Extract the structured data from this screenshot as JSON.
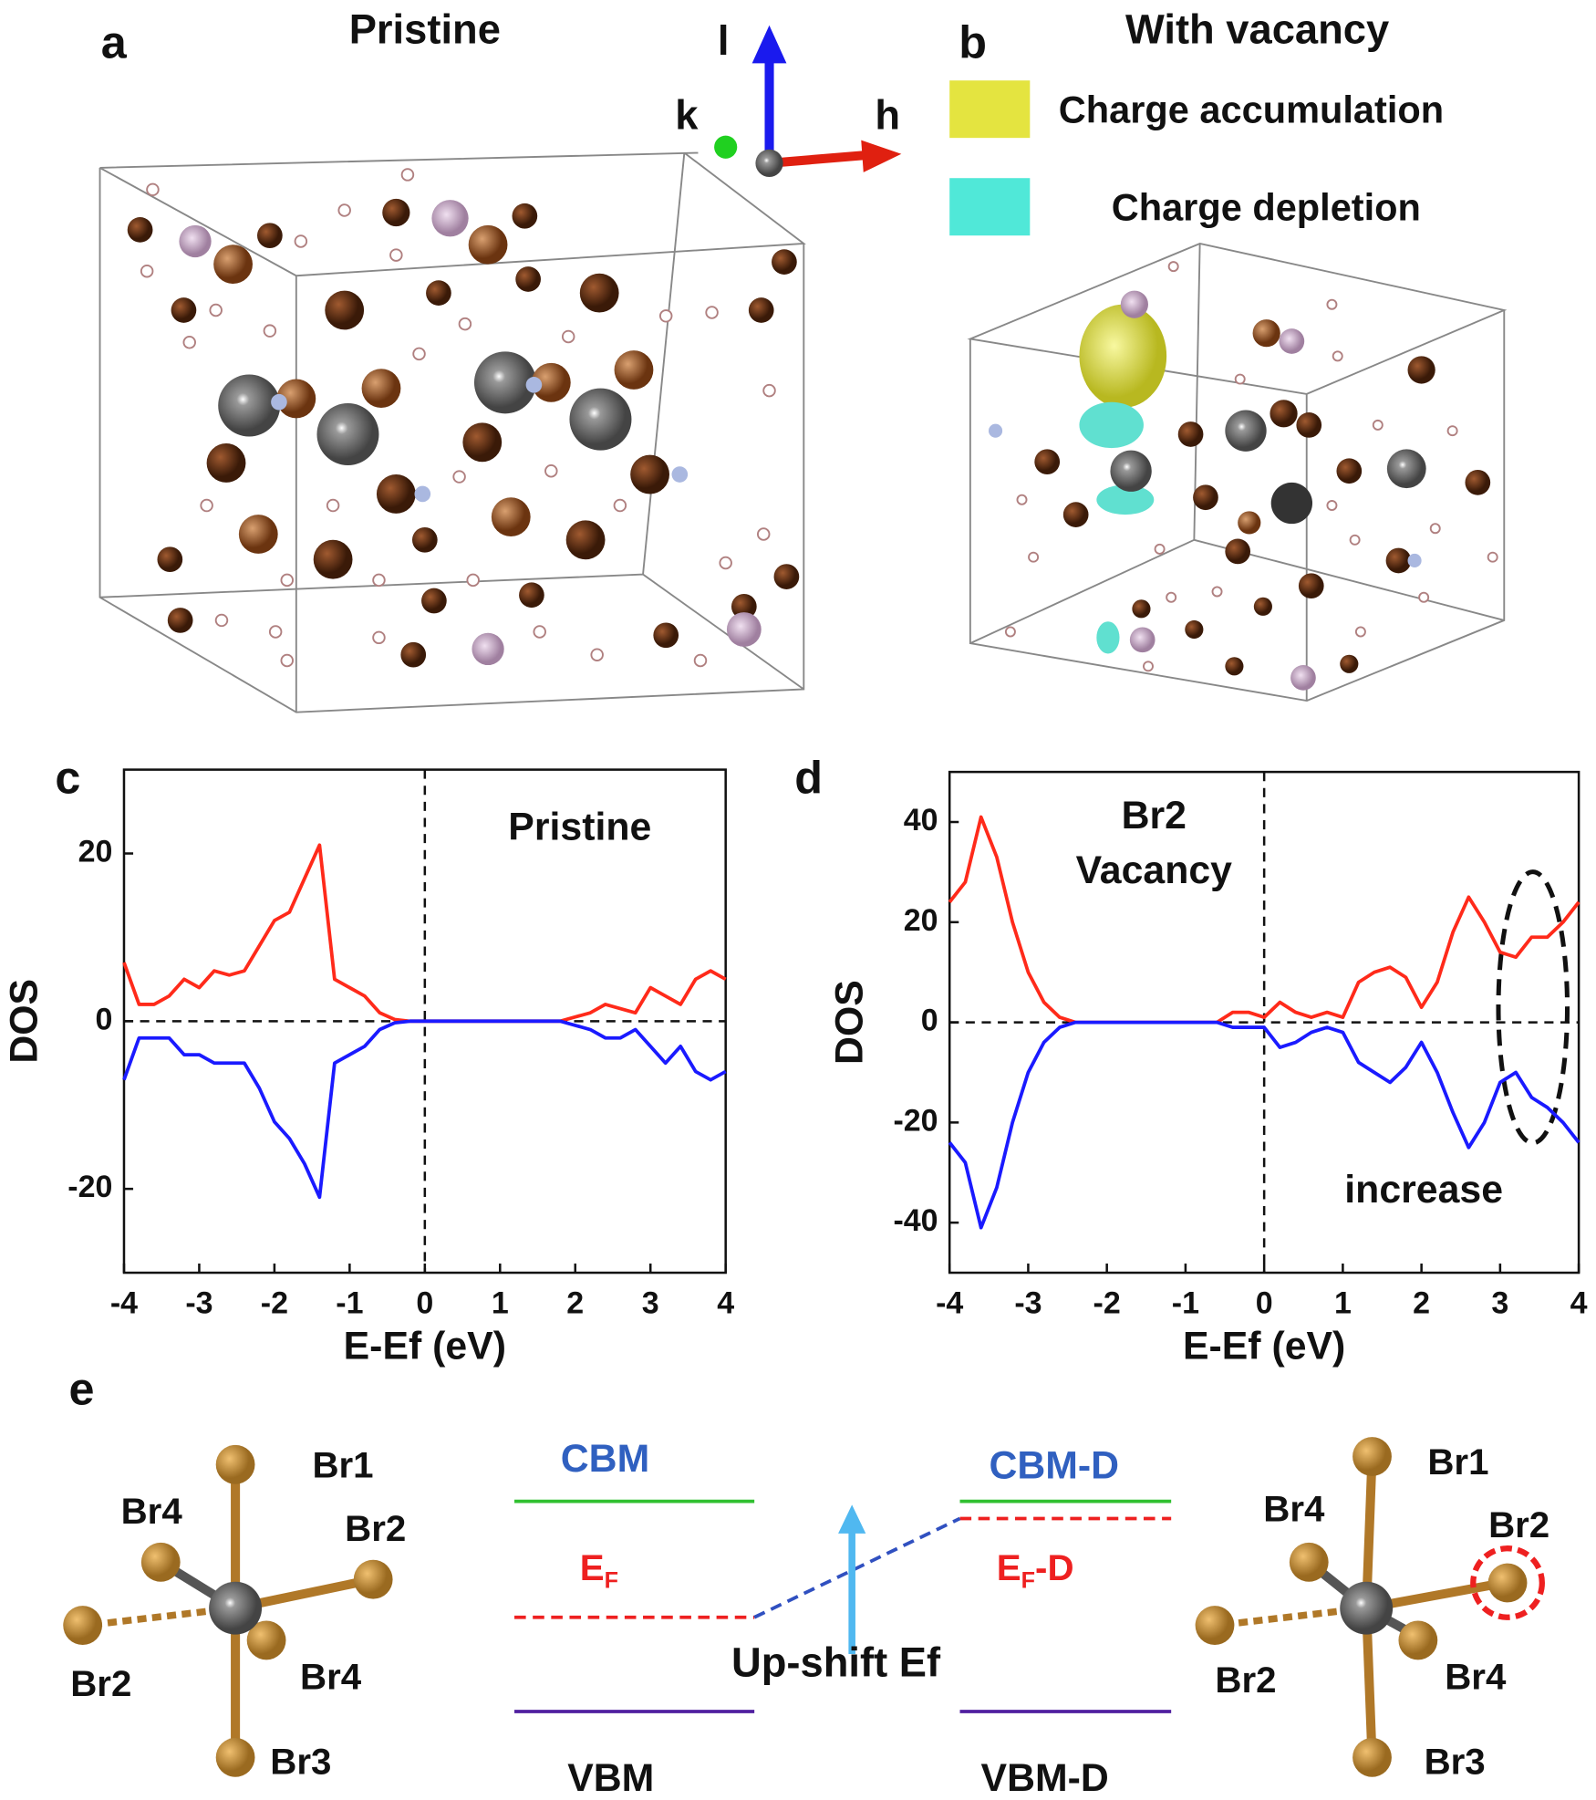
{
  "panels": {
    "a": {
      "label": "a",
      "title": "Pristine",
      "axis_labels": [
        "l",
        "k",
        "h"
      ]
    },
    "b": {
      "label": "b",
      "title": "With vacancy",
      "legend": [
        "Charge accumulation",
        "Charge depletion"
      ]
    }
  },
  "chart_data": [
    {
      "type": "line",
      "panel_label": "c",
      "ylabel": "DOS",
      "xlabel": "E-Ef (eV)",
      "annotations": [
        "Pristine"
      ],
      "x": [
        -4,
        -3.8,
        -3.6,
        -3.4,
        -3.2,
        -3,
        -2.8,
        -2.6,
        -2.4,
        -2.2,
        -2,
        -1.8,
        -1.6,
        -1.4,
        -1.2,
        -1,
        -0.8,
        -0.6,
        -0.4,
        -0.2,
        0,
        0.2,
        0.4,
        0.6,
        0.8,
        1,
        1.2,
        1.4,
        1.6,
        1.8,
        2,
        2.2,
        2.4,
        2.6,
        2.8,
        3,
        3.2,
        3.4,
        3.6,
        3.8,
        4
      ],
      "series": [
        {
          "color": "#ff2a1a",
          "values": [
            7,
            2,
            2,
            3,
            5,
            4,
            6,
            5.5,
            6,
            9,
            12,
            13,
            17,
            21,
            5,
            4,
            3,
            1,
            0.2,
            0,
            0,
            0,
            0,
            0,
            0,
            0,
            0,
            0,
            0,
            0,
            0.5,
            1,
            2,
            1.5,
            1,
            4,
            3,
            2,
            5,
            6,
            5
          ]
        },
        {
          "color": "#1a1aff",
          "values": [
            -7,
            -2,
            -2,
            -2,
            -4,
            -4,
            -5,
            -5,
            -5,
            -8,
            -12,
            -14,
            -17,
            -21,
            -5,
            -4,
            -3,
            -1,
            -0.2,
            0,
            0,
            0,
            0,
            0,
            0,
            0,
            0,
            0,
            0,
            0,
            -0.5,
            -1,
            -2,
            -2,
            -1,
            -3,
            -5,
            -3,
            -6,
            -7,
            -6
          ]
        }
      ],
      "xlim": [
        -4,
        4
      ],
      "xticks": [
        -4,
        -3,
        -2,
        -1,
        0,
        1,
        2,
        3,
        4
      ],
      "ylim": [
        -30,
        30
      ],
      "yticks": [
        -20,
        0,
        20
      ]
    },
    {
      "type": "line",
      "panel_label": "d",
      "ylabel": "DOS",
      "xlabel": "E-Ef (eV)",
      "annotations": [
        "Br2",
        "Vacancy",
        "increase"
      ],
      "x": [
        -4,
        -3.8,
        -3.6,
        -3.4,
        -3.2,
        -3,
        -2.8,
        -2.6,
        -2.4,
        -2.2,
        -2,
        -1.8,
        -1.6,
        -1.4,
        -1.2,
        -1,
        -0.8,
        -0.6,
        -0.4,
        -0.2,
        0,
        0.2,
        0.4,
        0.6,
        0.8,
        1,
        1.2,
        1.4,
        1.6,
        1.8,
        2,
        2.2,
        2.4,
        2.6,
        2.8,
        3,
        3.2,
        3.4,
        3.6,
        3.8,
        4
      ],
      "series": [
        {
          "color": "#ff2a1a",
          "values": [
            24,
            28,
            41,
            33,
            20,
            10,
            4,
            1,
            0,
            0,
            0,
            0,
            0,
            0,
            0,
            0,
            0,
            0,
            2,
            2,
            1,
            4,
            2,
            1,
            2,
            1,
            8,
            10,
            11,
            9,
            3,
            8,
            18,
            25,
            20,
            14,
            13,
            17,
            17,
            20,
            24
          ]
        },
        {
          "color": "#1a1aff",
          "values": [
            -24,
            -28,
            -41,
            -33,
            -20,
            -10,
            -4,
            -1,
            0,
            0,
            0,
            0,
            0,
            0,
            0,
            0,
            0,
            0,
            -1,
            -1,
            -1,
            -5,
            -4,
            -2,
            -1,
            -2,
            -8,
            -10,
            -12,
            -9,
            -4,
            -10,
            -18,
            -25,
            -20,
            -12,
            -10,
            -15,
            -17,
            -20,
            -24
          ]
        }
      ],
      "xlim": [
        -4,
        4
      ],
      "xticks": [
        -4,
        -3,
        -2,
        -1,
        0,
        1,
        2,
        3,
        4
      ],
      "ylim": [
        -50,
        50
      ],
      "yticks": [
        -40,
        -20,
        0,
        20,
        40
      ]
    }
  ],
  "panel_e": {
    "label": "e",
    "left_atoms": [
      "Br1",
      "Br4",
      "Br2",
      "Br2",
      "Br4",
      "Br3"
    ],
    "right_atoms": [
      "Br1",
      "Br4",
      "Br2",
      "Br2",
      "Br4",
      "Br3"
    ],
    "cbm": "CBM",
    "ef": {
      "main": "E",
      "sub": "F"
    },
    "vbm": "VBM",
    "cbm_d": "CBM-D",
    "ef_d": {
      "main": "E",
      "sub": "F",
      "suffix": "-D"
    },
    "vbm_d": "VBM-D",
    "shift": "Up-shift Ef"
  }
}
